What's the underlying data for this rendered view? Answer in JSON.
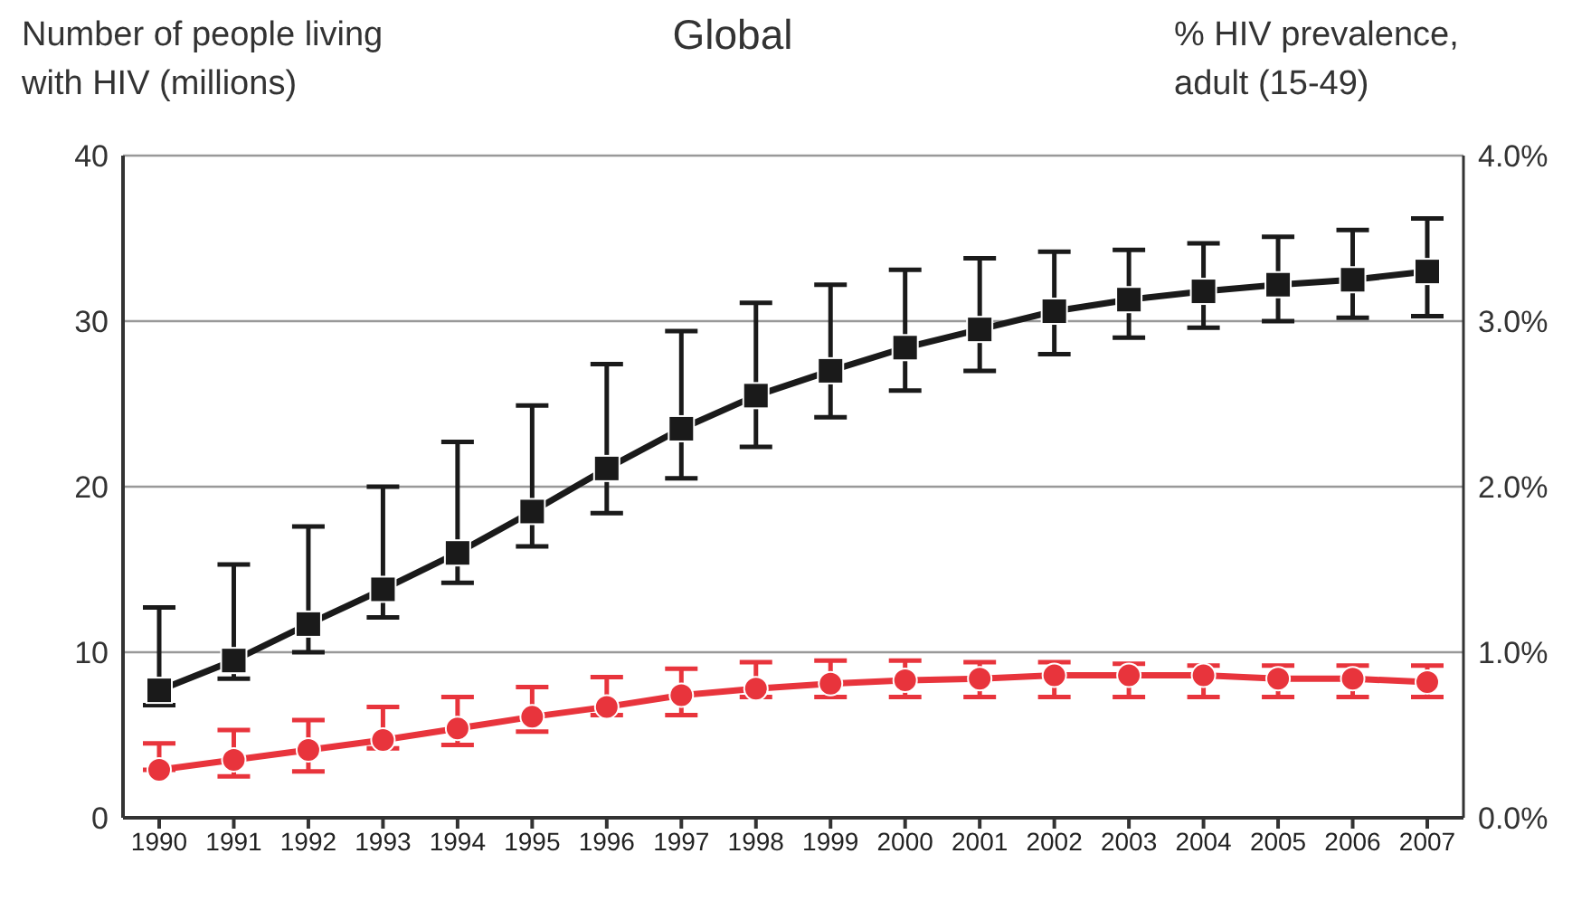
{
  "chart_data": {
    "type": "line",
    "title": "Global",
    "ylabel": "Number of people living with HIV (millions)",
    "y2label": "% HIV prevalence, adult (15-49)",
    "categories": [
      "1990",
      "1991",
      "1992",
      "1993",
      "1994",
      "1995",
      "1996",
      "1997",
      "1998",
      "1999",
      "2000",
      "2001",
      "2002",
      "2003",
      "2004",
      "2005",
      "2006",
      "2007"
    ],
    "ylim": [
      0,
      40
    ],
    "yticks": [
      0,
      10,
      20,
      30,
      40
    ],
    "y2lim": [
      0,
      4
    ],
    "y2ticks": [
      {
        "value": 0,
        "label": "0.0%"
      },
      {
        "value": 1,
        "label": "1.0%"
      },
      {
        "value": 2,
        "label": "2.0%"
      },
      {
        "value": 3,
        "label": "3.0%"
      },
      {
        "value": 4,
        "label": "4.0%"
      }
    ],
    "grid": "y",
    "series": [
      {
        "color": "#1a1a1a",
        "marker": "square",
        "values": [
          7.7,
          9.5,
          11.7,
          13.8,
          16.0,
          18.5,
          21.1,
          23.5,
          25.5,
          27.0,
          28.4,
          29.5,
          30.6,
          31.3,
          31.8,
          32.2,
          32.5,
          33.0
        ],
        "errors": [
          [
            6.8,
            12.7
          ],
          [
            8.4,
            15.3
          ],
          [
            10.0,
            17.6
          ],
          [
            12.1,
            20.0
          ],
          [
            14.2,
            22.7
          ],
          [
            16.4,
            24.9
          ],
          [
            18.4,
            27.4
          ],
          [
            20.5,
            29.4
          ],
          [
            22.4,
            31.1
          ],
          [
            24.2,
            32.2
          ],
          [
            25.8,
            33.1
          ],
          [
            27.0,
            33.8
          ],
          [
            28.0,
            34.2
          ],
          [
            29.0,
            34.3
          ],
          [
            29.6,
            34.7
          ],
          [
            30.0,
            35.1
          ],
          [
            30.2,
            35.5
          ],
          [
            30.3,
            36.2
          ]
        ]
      },
      {
        "color": "#e8343c",
        "marker": "circle",
        "axis": "y2",
        "values": [
          0.29,
          0.35,
          0.41,
          0.47,
          0.54,
          0.61,
          0.67,
          0.74,
          0.78,
          0.81,
          0.83,
          0.84,
          0.86,
          0.86,
          0.86,
          0.84,
          0.84,
          0.82
        ],
        "errors": [
          [
            0.29,
            0.45
          ],
          [
            0.25,
            0.53
          ],
          [
            0.28,
            0.59
          ],
          [
            0.42,
            0.67
          ],
          [
            0.44,
            0.73
          ],
          [
            0.52,
            0.79
          ],
          [
            0.62,
            0.85
          ],
          [
            0.62,
            0.9
          ],
          [
            0.73,
            0.94
          ],
          [
            0.73,
            0.95
          ],
          [
            0.73,
            0.95
          ],
          [
            0.73,
            0.94
          ],
          [
            0.73,
            0.94
          ],
          [
            0.73,
            0.93
          ],
          [
            0.73,
            0.92
          ],
          [
            0.73,
            0.92
          ],
          [
            0.73,
            0.92
          ],
          [
            0.73,
            0.92
          ]
        ]
      }
    ]
  }
}
